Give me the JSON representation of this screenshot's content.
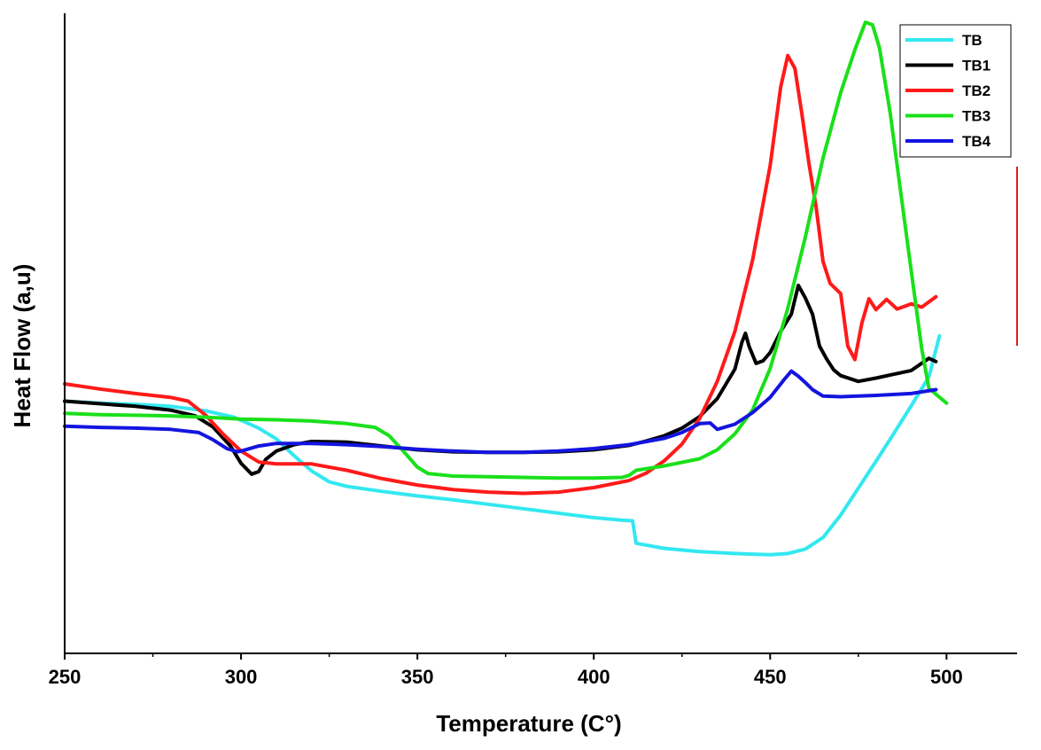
{
  "chart_data": {
    "type": "line",
    "title": "",
    "xlabel": "Temperature (C°)",
    "ylabel": "Heat Flow (a,u)",
    "xlim": [
      250,
      520
    ],
    "ylim": [
      0,
      100
    ],
    "xticks": [
      250,
      300,
      350,
      400,
      450,
      500
    ],
    "grid": false,
    "legend_position": "top-right",
    "series": [
      {
        "name": "TB",
        "color": "#33E8F0",
        "points": [
          [
            250,
            39.4
          ],
          [
            260,
            39.1
          ],
          [
            270,
            38.9
          ],
          [
            280,
            38.6
          ],
          [
            290,
            37.9
          ],
          [
            298,
            36.9
          ],
          [
            305,
            35.2
          ],
          [
            310,
            33.5
          ],
          [
            315,
            30.9
          ],
          [
            320,
            28.5
          ],
          [
            325,
            26.8
          ],
          [
            330,
            26.1
          ],
          [
            340,
            25.3
          ],
          [
            350,
            24.6
          ],
          [
            360,
            24.0
          ],
          [
            370,
            23.3
          ],
          [
            380,
            22.6
          ],
          [
            390,
            21.9
          ],
          [
            400,
            21.2
          ],
          [
            408,
            20.8
          ],
          [
            411,
            20.7
          ],
          [
            412,
            17.2
          ],
          [
            420,
            16.4
          ],
          [
            430,
            15.9
          ],
          [
            440,
            15.6
          ],
          [
            450,
            15.4
          ],
          [
            455,
            15.6
          ],
          [
            460,
            16.3
          ],
          [
            465,
            18.1
          ],
          [
            470,
            21.6
          ],
          [
            475,
            25.8
          ],
          [
            480,
            30.0
          ],
          [
            485,
            34.3
          ],
          [
            490,
            38.7
          ],
          [
            495,
            43.2
          ],
          [
            498,
            49.6
          ]
        ]
      },
      {
        "name": "TB1",
        "color": "#000000",
        "points": [
          [
            250,
            39.4
          ],
          [
            260,
            39.0
          ],
          [
            270,
            38.6
          ],
          [
            280,
            38.0
          ],
          [
            287,
            37.1
          ],
          [
            292,
            35.4
          ],
          [
            297,
            32.4
          ],
          [
            300,
            29.7
          ],
          [
            303,
            28.0
          ],
          [
            305,
            28.4
          ],
          [
            307,
            30.3
          ],
          [
            310,
            31.6
          ],
          [
            315,
            32.6
          ],
          [
            320,
            33.1
          ],
          [
            330,
            33.0
          ],
          [
            340,
            32.4
          ],
          [
            350,
            31.8
          ],
          [
            360,
            31.5
          ],
          [
            370,
            31.4
          ],
          [
            380,
            31.4
          ],
          [
            390,
            31.5
          ],
          [
            400,
            31.8
          ],
          [
            410,
            32.5
          ],
          [
            415,
            33.2
          ],
          [
            420,
            34.0
          ],
          [
            425,
            35.2
          ],
          [
            430,
            37.0
          ],
          [
            435,
            39.8
          ],
          [
            440,
            44.4
          ],
          [
            442,
            48.6
          ],
          [
            443,
            50.0
          ],
          [
            444,
            48.0
          ],
          [
            446,
            45.3
          ],
          [
            448,
            45.7
          ],
          [
            450,
            47.0
          ],
          [
            453,
            50.3
          ],
          [
            456,
            53.0
          ],
          [
            458,
            57.5
          ],
          [
            460,
            55.5
          ],
          [
            462,
            53.0
          ],
          [
            464,
            48.0
          ],
          [
            466,
            46.0
          ],
          [
            468,
            44.3
          ],
          [
            470,
            43.4
          ],
          [
            475,
            42.5
          ],
          [
            480,
            43.0
          ],
          [
            485,
            43.6
          ],
          [
            490,
            44.2
          ],
          [
            495,
            46.1
          ],
          [
            497,
            45.6
          ]
        ]
      },
      {
        "name": "TB2",
        "color": "#FF1A1A",
        "points": [
          [
            250,
            42.1
          ],
          [
            260,
            41.3
          ],
          [
            270,
            40.6
          ],
          [
            280,
            40.0
          ],
          [
            285,
            39.4
          ],
          [
            290,
            37.2
          ],
          [
            295,
            34.2
          ],
          [
            300,
            31.6
          ],
          [
            305,
            29.9
          ],
          [
            310,
            29.6
          ],
          [
            320,
            29.6
          ],
          [
            330,
            28.6
          ],
          [
            340,
            27.3
          ],
          [
            350,
            26.3
          ],
          [
            360,
            25.6
          ],
          [
            370,
            25.2
          ],
          [
            380,
            25.0
          ],
          [
            390,
            25.2
          ],
          [
            400,
            25.9
          ],
          [
            410,
            27.0
          ],
          [
            415,
            28.2
          ],
          [
            420,
            30.1
          ],
          [
            425,
            32.7
          ],
          [
            430,
            36.7
          ],
          [
            435,
            42.5
          ],
          [
            440,
            50.3
          ],
          [
            445,
            61.4
          ],
          [
            450,
            76.2
          ],
          [
            453,
            88.5
          ],
          [
            455,
            93.4
          ],
          [
            457,
            91.4
          ],
          [
            459,
            84.3
          ],
          [
            461,
            76.5
          ],
          [
            463,
            69.8
          ],
          [
            465,
            61.2
          ],
          [
            467,
            57.8
          ],
          [
            470,
            56.2
          ],
          [
            472,
            48.0
          ],
          [
            474,
            45.9
          ],
          [
            476,
            51.6
          ],
          [
            478,
            55.4
          ],
          [
            480,
            53.7
          ],
          [
            483,
            55.3
          ],
          [
            486,
            53.8
          ],
          [
            490,
            54.6
          ],
          [
            493,
            54.1
          ],
          [
            497,
            55.7
          ]
        ]
      },
      {
        "name": "TB3",
        "color": "#1AE01A",
        "points": [
          [
            250,
            37.5
          ],
          [
            260,
            37.3
          ],
          [
            270,
            37.2
          ],
          [
            280,
            37.1
          ],
          [
            290,
            36.9
          ],
          [
            300,
            36.6
          ],
          [
            310,
            36.5
          ],
          [
            320,
            36.3
          ],
          [
            330,
            35.9
          ],
          [
            338,
            35.3
          ],
          [
            342,
            34.0
          ],
          [
            346,
            31.6
          ],
          [
            350,
            29.1
          ],
          [
            353,
            28.1
          ],
          [
            360,
            27.7
          ],
          [
            370,
            27.6
          ],
          [
            380,
            27.5
          ],
          [
            390,
            27.4
          ],
          [
            400,
            27.4
          ],
          [
            408,
            27.5
          ],
          [
            410,
            27.8
          ],
          [
            412,
            28.6
          ],
          [
            420,
            29.3
          ],
          [
            430,
            30.4
          ],
          [
            435,
            31.8
          ],
          [
            440,
            34.3
          ],
          [
            445,
            38.0
          ],
          [
            450,
            44.5
          ],
          [
            455,
            53.9
          ],
          [
            460,
            65.1
          ],
          [
            465,
            77.4
          ],
          [
            470,
            87.6
          ],
          [
            474,
            94.3
          ],
          [
            477,
            98.6
          ],
          [
            479,
            98.2
          ],
          [
            481,
            94.6
          ],
          [
            484,
            84.5
          ],
          [
            487,
            72.1
          ],
          [
            490,
            59.7
          ],
          [
            493,
            47.5
          ],
          [
            495,
            41.4
          ],
          [
            500,
            39.1
          ]
        ]
      },
      {
        "name": "TB4",
        "color": "#1414E0",
        "points": [
          [
            250,
            35.5
          ],
          [
            260,
            35.3
          ],
          [
            270,
            35.2
          ],
          [
            280,
            35.0
          ],
          [
            288,
            34.5
          ],
          [
            292,
            33.4
          ],
          [
            296,
            32.0
          ],
          [
            299,
            31.5
          ],
          [
            300,
            31.6
          ],
          [
            305,
            32.4
          ],
          [
            310,
            32.8
          ],
          [
            320,
            32.8
          ],
          [
            330,
            32.6
          ],
          [
            340,
            32.3
          ],
          [
            350,
            31.9
          ],
          [
            360,
            31.6
          ],
          [
            370,
            31.4
          ],
          [
            380,
            31.4
          ],
          [
            390,
            31.6
          ],
          [
            400,
            32.0
          ],
          [
            410,
            32.6
          ],
          [
            420,
            33.6
          ],
          [
            425,
            34.5
          ],
          [
            430,
            35.9
          ],
          [
            433,
            36.0
          ],
          [
            435,
            35.0
          ],
          [
            440,
            35.8
          ],
          [
            445,
            37.6
          ],
          [
            450,
            40.0
          ],
          [
            454,
            42.8
          ],
          [
            456,
            44.1
          ],
          [
            458,
            43.3
          ],
          [
            460,
            42.3
          ],
          [
            462,
            41.2
          ],
          [
            465,
            40.2
          ],
          [
            470,
            40.1
          ],
          [
            480,
            40.3
          ],
          [
            490,
            40.6
          ],
          [
            497,
            41.2
          ]
        ]
      }
    ]
  }
}
